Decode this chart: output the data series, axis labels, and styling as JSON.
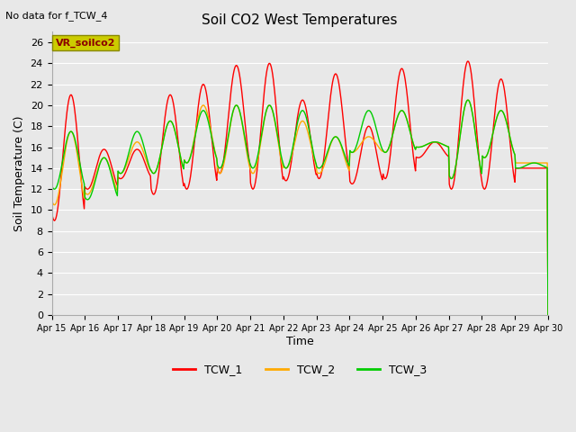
{
  "title": "Soil CO2 West Temperatures",
  "no_data_text": "No data for f_TCW_4",
  "xlabel": "Time",
  "ylabel": "Soil Temperature (C)",
  "ylim": [
    0,
    27
  ],
  "yticks": [
    0,
    2,
    4,
    6,
    8,
    10,
    12,
    14,
    16,
    18,
    20,
    22,
    24,
    26
  ],
  "bg_color": "#e8e8e8",
  "plot_bg_color": "#e8e8e8",
  "legend_label": "VR_soilco2",
  "legend_box_color": "#cccc00",
  "line_colors": {
    "TCW_1": "#ff0000",
    "TCW_2": "#ffaa00",
    "TCW_3": "#00cc00"
  },
  "x_tick_labels": [
    "Apr 15",
    "Apr 16",
    "Apr 17",
    "Apr 18",
    "Apr 19",
    "Apr 20",
    "Apr 21",
    "Apr 22",
    "Apr 23",
    "Apr 24",
    "Apr 25",
    "Apr 26",
    "Apr 27",
    "Apr 28",
    "Apr 29",
    "Apr 30"
  ]
}
